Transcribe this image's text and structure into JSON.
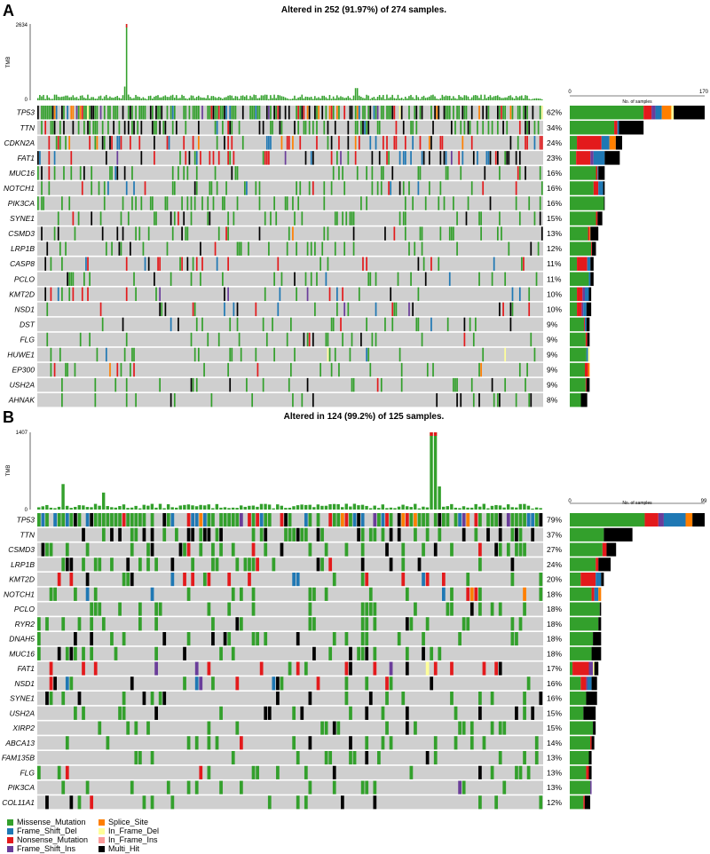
{
  "panels": [
    {
      "letter": "A",
      "title": "Altered in 252 (91.97%) of 274 samples.",
      "tmb_label": "TMB",
      "tmb_max_label": "2634",
      "tmb_min_label": "0",
      "side_axis_min": "0",
      "side_axis_max": "170",
      "side_axis_label": "No. of samples"
    },
    {
      "letter": "B",
      "title": "Altered in 124 (99.2%) of 125 samples.",
      "tmb_label": "TMB",
      "tmb_max_label": "1407",
      "tmb_min_label": "0",
      "side_axis_min": "0",
      "side_axis_max": "99",
      "side_axis_label": "No. of samples"
    }
  ],
  "legend": {
    "items": [
      {
        "label": "Missense_Mutation",
        "color": "#33a02c"
      },
      {
        "label": "Frame_Shift_Del",
        "color": "#1f78b4"
      },
      {
        "label": "Nonsense_Mutation",
        "color": "#e31a1c"
      },
      {
        "label": "Frame_Shift_Ins",
        "color": "#6a3d9a"
      },
      {
        "label": "Splice_Site",
        "color": "#ff7f00"
      },
      {
        "label": "In_Frame_Del",
        "color": "#ffff99"
      },
      {
        "label": "In_Frame_Ins",
        "color": "#fb9a99"
      },
      {
        "label": "Multi_Hit",
        "color": "#000000"
      }
    ]
  },
  "chart_data": [
    {
      "type": "heatmap",
      "title": "Altered in 252 (91.97%) of 274 samples.",
      "n_samples": 274,
      "tmb_max": 2634,
      "side_max": 170,
      "genes": [
        {
          "gene": "TP53",
          "pct": "62%",
          "count": 170,
          "breakdown": {
            "Missense_Mutation": 93,
            "Nonsense_Mutation": 10,
            "Frame_Shift_Ins": 5,
            "Frame_Shift_Del": 8,
            "Splice_Site": 12,
            "In_Frame_Del": 3,
            "Multi_Hit": 39
          }
        },
        {
          "gene": "TTN",
          "pct": "34%",
          "count": 93,
          "breakdown": {
            "Missense_Mutation": 56,
            "Nonsense_Mutation": 4,
            "Frame_Shift_Del": 2,
            "Multi_Hit": 31
          }
        },
        {
          "gene": "CDKN2A",
          "pct": "24%",
          "count": 66,
          "breakdown": {
            "Missense_Mutation": 9,
            "Nonsense_Mutation": 31,
            "Frame_Shift_Del": 10,
            "Splice_Site": 8,
            "Multi_Hit": 8
          }
        },
        {
          "gene": "FAT1",
          "pct": "23%",
          "count": 63,
          "breakdown": {
            "Missense_Mutation": 8,
            "Nonsense_Mutation": 18,
            "Frame_Shift_Del": 14,
            "Frame_Shift_Ins": 4,
            "Multi_Hit": 19
          }
        },
        {
          "gene": "MUC16",
          "pct": "16%",
          "count": 44,
          "breakdown": {
            "Missense_Mutation": 33,
            "Nonsense_Mutation": 2,
            "Frame_Shift_Del": 1,
            "Multi_Hit": 8
          }
        },
        {
          "gene": "NOTCH1",
          "pct": "16%",
          "count": 44,
          "breakdown": {
            "Missense_Mutation": 30,
            "Nonsense_Mutation": 6,
            "Frame_Shift_Del": 6,
            "Multi_Hit": 2
          }
        },
        {
          "gene": "PIK3CA",
          "pct": "16%",
          "count": 44,
          "breakdown": {
            "Missense_Mutation": 43,
            "Multi_Hit": 1
          }
        },
        {
          "gene": "SYNE1",
          "pct": "15%",
          "count": 41,
          "breakdown": {
            "Missense_Mutation": 33,
            "Nonsense_Mutation": 2,
            "Multi_Hit": 6
          }
        },
        {
          "gene": "CSMD3",
          "pct": "13%",
          "count": 36,
          "breakdown": {
            "Missense_Mutation": 23,
            "Nonsense_Mutation": 2,
            "Splice_Site": 1,
            "Multi_Hit": 10
          }
        },
        {
          "gene": "LRP1B",
          "pct": "12%",
          "count": 33,
          "breakdown": {
            "Missense_Mutation": 27,
            "Nonsense_Mutation": 1,
            "Multi_Hit": 5
          }
        },
        {
          "gene": "CASP8",
          "pct": "11%",
          "count": 30,
          "breakdown": {
            "Missense_Mutation": 9,
            "Nonsense_Mutation": 13,
            "Frame_Shift_Del": 4,
            "Multi_Hit": 4
          }
        },
        {
          "gene": "PCLO",
          "pct": "11%",
          "count": 30,
          "breakdown": {
            "Missense_Mutation": 24,
            "Frame_Shift_Del": 2,
            "Multi_Hit": 4
          }
        },
        {
          "gene": "KMT2D",
          "pct": "10%",
          "count": 27,
          "breakdown": {
            "Missense_Mutation": 9,
            "Nonsense_Mutation": 7,
            "Frame_Shift_Del": 5,
            "Frame_Shift_Ins": 3,
            "Multi_Hit": 3
          }
        },
        {
          "gene": "NSD1",
          "pct": "10%",
          "count": 27,
          "breakdown": {
            "Missense_Mutation": 9,
            "Nonsense_Mutation": 6,
            "Frame_Shift_Del": 4,
            "Frame_Shift_Ins": 2,
            "Multi_Hit": 6
          }
        },
        {
          "gene": "DST",
          "pct": "9%",
          "count": 25,
          "breakdown": {
            "Missense_Mutation": 18,
            "Nonsense_Mutation": 1,
            "Frame_Shift_Del": 2,
            "Multi_Hit": 4
          }
        },
        {
          "gene": "FLG",
          "pct": "9%",
          "count": 25,
          "breakdown": {
            "Missense_Mutation": 20,
            "Nonsense_Mutation": 2,
            "Multi_Hit": 3
          }
        },
        {
          "gene": "HUWE1",
          "pct": "9%",
          "count": 25,
          "breakdown": {
            "Missense_Mutation": 21,
            "Frame_Shift_Del": 2,
            "In_Frame_Del": 2
          }
        },
        {
          "gene": "EP300",
          "pct": "9%",
          "count": 25,
          "breakdown": {
            "Missense_Mutation": 19,
            "Nonsense_Mutation": 4,
            "Splice_Site": 2
          }
        },
        {
          "gene": "USH2A",
          "pct": "9%",
          "count": 25,
          "breakdown": {
            "Missense_Mutation": 20,
            "Nonsense_Mutation": 1,
            "Multi_Hit": 4
          }
        },
        {
          "gene": "AHNAK",
          "pct": "8%",
          "count": 22,
          "breakdown": {
            "Missense_Mutation": 14,
            "Multi_Hit": 8
          }
        }
      ]
    },
    {
      "type": "heatmap",
      "title": "Altered in 124 (99.2%) of 125 samples.",
      "n_samples": 125,
      "tmb_max": 1407,
      "side_max": 99,
      "genes": [
        {
          "gene": "TP53",
          "pct": "79%",
          "count": 99,
          "breakdown": {
            "Missense_Mutation": 55,
            "Frame_Shift_Del": 16,
            "Nonsense_Mutation": 10,
            "Frame_Shift_Ins": 4,
            "Splice_Site": 5,
            "Multi_Hit": 9
          }
        },
        {
          "gene": "TTN",
          "pct": "37%",
          "count": 46,
          "breakdown": {
            "Missense_Mutation": 25,
            "Multi_Hit": 21
          }
        },
        {
          "gene": "CSMD3",
          "pct": "27%",
          "count": 34,
          "breakdown": {
            "Missense_Mutation": 24,
            "Nonsense_Mutation": 3,
            "Multi_Hit": 7
          }
        },
        {
          "gene": "LRP1B",
          "pct": "24%",
          "count": 30,
          "breakdown": {
            "Missense_Mutation": 19,
            "Nonsense_Mutation": 2,
            "Multi_Hit": 9
          }
        },
        {
          "gene": "KMT2D",
          "pct": "20%",
          "count": 25,
          "breakdown": {
            "Missense_Mutation": 8,
            "Frame_Shift_Del": 4,
            "Nonsense_Mutation": 11,
            "Multi_Hit": 2
          }
        },
        {
          "gene": "NOTCH1",
          "pct": "18%",
          "count": 23,
          "breakdown": {
            "Missense_Mutation": 16,
            "Frame_Shift_Del": 3,
            "Nonsense_Mutation": 2,
            "Splice_Site": 2
          }
        },
        {
          "gene": "PCLO",
          "pct": "18%",
          "count": 23,
          "breakdown": {
            "Missense_Mutation": 22,
            "Multi_Hit": 1
          }
        },
        {
          "gene": "RYR2",
          "pct": "18%",
          "count": 23,
          "breakdown": {
            "Missense_Mutation": 21,
            "Multi_Hit": 2
          }
        },
        {
          "gene": "DNAH5",
          "pct": "18%",
          "count": 23,
          "breakdown": {
            "Missense_Mutation": 17,
            "Multi_Hit": 6
          }
        },
        {
          "gene": "MUC16",
          "pct": "18%",
          "count": 23,
          "breakdown": {
            "Missense_Mutation": 16,
            "Multi_Hit": 7
          }
        },
        {
          "gene": "FAT1",
          "pct": "17%",
          "count": 21,
          "breakdown": {
            "Missense_Mutation": 2,
            "Frame_Shift_Ins": 3,
            "Nonsense_Mutation": 12,
            "In_Frame_Del": 1,
            "Multi_Hit": 3
          }
        },
        {
          "gene": "NSD1",
          "pct": "16%",
          "count": 20,
          "breakdown": {
            "Missense_Mutation": 8,
            "Frame_Shift_Del": 3,
            "Nonsense_Mutation": 4,
            "Frame_Shift_Ins": 1,
            "Multi_Hit": 4
          }
        },
        {
          "gene": "SYNE1",
          "pct": "16%",
          "count": 20,
          "breakdown": {
            "Missense_Mutation": 12,
            "Multi_Hit": 8
          }
        },
        {
          "gene": "USH2A",
          "pct": "15%",
          "count": 19,
          "breakdown": {
            "Missense_Mutation": 10,
            "Multi_Hit": 9
          }
        },
        {
          "gene": "XIRP2",
          "pct": "15%",
          "count": 19,
          "breakdown": {
            "Missense_Mutation": 17,
            "Multi_Hit": 2
          }
        },
        {
          "gene": "ABCA13",
          "pct": "14%",
          "count": 18,
          "breakdown": {
            "Missense_Mutation": 15,
            "Nonsense_Mutation": 1,
            "Multi_Hit": 2
          }
        },
        {
          "gene": "FAM135B",
          "pct": "13%",
          "count": 16,
          "breakdown": {
            "Missense_Mutation": 14,
            "Multi_Hit": 2
          }
        },
        {
          "gene": "FLG",
          "pct": "13%",
          "count": 16,
          "breakdown": {
            "Missense_Mutation": 12,
            "Nonsense_Mutation": 2,
            "Multi_Hit": 2
          }
        },
        {
          "gene": "PIK3CA",
          "pct": "13%",
          "count": 16,
          "breakdown": {
            "Missense_Mutation": 15,
            "Frame_Shift_Ins": 1
          }
        },
        {
          "gene": "COL11A1",
          "pct": "12%",
          "count": 15,
          "breakdown": {
            "Missense_Mutation": 10,
            "Nonsense_Mutation": 1,
            "Multi_Hit": 4
          }
        }
      ]
    }
  ]
}
